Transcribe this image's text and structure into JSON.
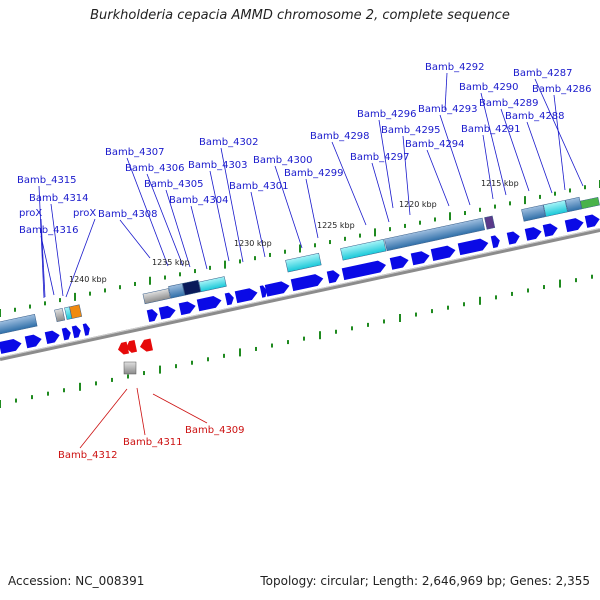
{
  "title": "Burkholderia cepacia AMMD chromosome 2, complete sequence",
  "footer": {
    "accession": "Accession: NC_008391",
    "summary": "Topology: circular; Length: 2,646,969 bp; Genes: 2,355"
  },
  "colors": {
    "forward_gene": "#0a0ae6",
    "reverse_gene": "#e60a0a",
    "backbone": "#8c8c8c",
    "tick": "#1f8a1f",
    "forward_label": "#1a1acc",
    "reverse_label": "#cc1111"
  },
  "scale_ticks": [
    "1215 kbp",
    "1220 kbp",
    "1225 kbp",
    "1230 kbp",
    "1235 kbp",
    "1240 kbp"
  ],
  "forward_gene_labels": [
    "Bamb_4292",
    "Bamb_4287",
    "Bamb_4290",
    "Bamb_4286",
    "Bamb_4289",
    "Bamb_4293",
    "Bamb_4288",
    "Bamb_4296",
    "Bamb_4291",
    "Bamb_4295",
    "Bamb_4298",
    "Bamb_4294",
    "Bamb_4302",
    "Bamb_4297",
    "Bamb_4307",
    "Bamb_4300",
    "Bamb_4303",
    "Bamb_4306",
    "Bamb_4299",
    "Bamb_4315",
    "Bamb_4305",
    "Bamb_4301",
    "Bamb_4314",
    "Bamb_4304",
    "proX",
    "proX",
    "Bamb_4308",
    "Bamb_4316"
  ],
  "reverse_gene_labels": [
    "Bamb_4309",
    "Bamb_4311",
    "Bamb_4312"
  ]
}
